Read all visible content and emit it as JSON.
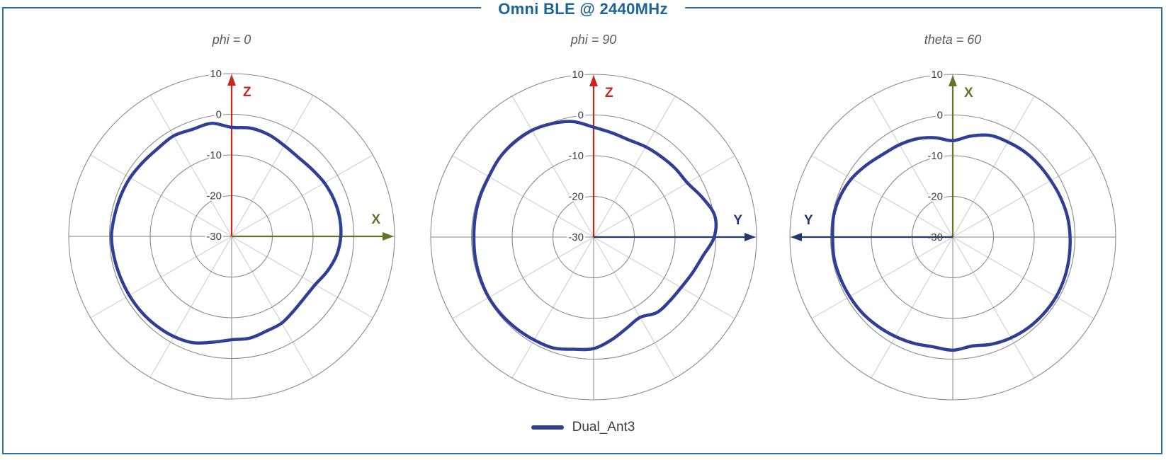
{
  "page": {
    "border_color": "#2e6f9e"
  },
  "header": {
    "title": "Omni BLE @ 2440MHz",
    "color": "#1c6496"
  },
  "legend": {
    "label": "Dual_Ant3",
    "swatch_color": "#303f96"
  },
  "chart_data": {
    "type": "polar",
    "units": "dB",
    "series_name": "Dual_Ant3",
    "trace_color": "#303f96",
    "r_axis": {
      "min": -30,
      "max": 10,
      "tick_labels": [
        "10",
        "0",
        "-10",
        "-20",
        "-30"
      ],
      "tick_values": [
        10,
        0,
        -10,
        -20,
        -30
      ],
      "ring_step_db": 10
    },
    "grid": {
      "ring_color": "#8a8a8a",
      "spoke_color": "#c9c9c9",
      "cross_color": "#9b9b9b",
      "spoke_step_deg": 30
    },
    "angle_convention": "degrees clockwise from vertical (up) axis",
    "angle_step_deg": 10,
    "plots": [
      {
        "title": "phi = 0",
        "up_axis": {
          "label": "Z",
          "color": "#c9251a"
        },
        "side_axis": {
          "label": "X",
          "color": "#6a7028",
          "direction": "right"
        },
        "values_db": [
          -3.2,
          -3.0,
          -3.4,
          -4.2,
          -4.6,
          -4.3,
          -3.7,
          -3.3,
          -3.1,
          -3.2,
          -3.8,
          -5.0,
          -6.3,
          -6.6,
          -6.2,
          -5.4,
          -5.2,
          -4.6,
          -4.6,
          -3.6,
          -2.2,
          -1.6,
          -1.3,
          -1.1,
          -1.0,
          -0.9,
          -0.7,
          -0.5,
          -0.8,
          -1.0,
          -1.2,
          -1.6,
          -1.8,
          -1.5,
          -2.0,
          -1.8
        ]
      },
      {
        "title": "phi = 90",
        "up_axis": {
          "label": "Z",
          "color": "#c9251a"
        },
        "side_axis": {
          "label": "Y",
          "color": "#223a6d",
          "direction": "right"
        },
        "values_db": [
          -3.0,
          -4.0,
          -4.6,
          -4.4,
          -4.2,
          -3.8,
          -3.4,
          -1.6,
          0.2,
          -0.4,
          -2.8,
          -4.2,
          -5.2,
          -5.6,
          -5.8,
          -7.2,
          -6.2,
          -4.4,
          -2.6,
          -2.0,
          -1.0,
          -0.8,
          -0.6,
          -0.4,
          -0.3,
          -0.4,
          -0.5,
          -0.6,
          -0.5,
          -0.4,
          -0.3,
          0.2,
          0.4,
          0.3,
          -0.3,
          -1.2
        ]
      },
      {
        "title": "theta = 60",
        "up_axis": {
          "label": "X",
          "color": "#6a7028"
        },
        "side_axis": {
          "label": "Y",
          "color": "#223a6d",
          "direction": "left"
        },
        "values_db": [
          -6.3,
          -4.8,
          -3.4,
          -3.0,
          -2.6,
          -2.4,
          -2.2,
          -1.8,
          -1.4,
          -1.2,
          -1.0,
          -0.8,
          -0.7,
          -0.8,
          -1.0,
          -1.4,
          -2.0,
          -2.8,
          -2.2,
          -2.6,
          -2.2,
          -1.8,
          -1.4,
          -1.0,
          -0.8,
          -0.6,
          -0.4,
          -0.5,
          -0.3,
          -0.6,
          -1.3,
          -2.4,
          -3.4,
          -3.8,
          -4.3,
          -5.2
        ]
      }
    ],
    "layout": {
      "plot_centers_x": [
        327,
        838,
        1345
      ],
      "plot_centers_y": [
        334,
        335,
        335
      ],
      "outer_radius_px": 230
    }
  }
}
